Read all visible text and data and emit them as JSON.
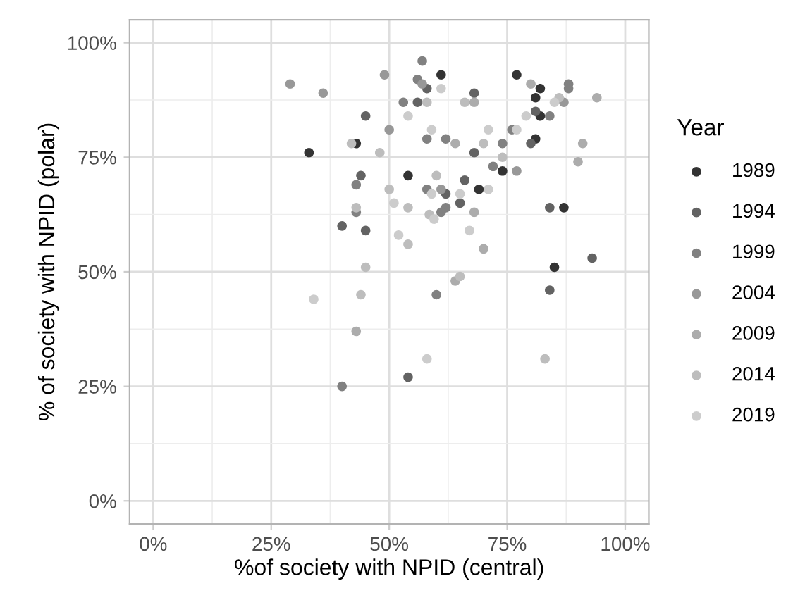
{
  "chart_data": {
    "type": "scatter",
    "xlabel": "%of society with NPID (central)",
    "ylabel": "% of society with NPID (polar)",
    "legend_title": "Year",
    "xlim": [
      -5,
      105
    ],
    "ylim": [
      -5,
      105
    ],
    "xticks": [
      {
        "value": 0,
        "label": "0%"
      },
      {
        "value": 25,
        "label": "25%"
      },
      {
        "value": 50,
        "label": "50%"
      },
      {
        "value": 75,
        "label": "75%"
      },
      {
        "value": 100,
        "label": "100%"
      }
    ],
    "yticks": [
      {
        "value": 0,
        "label": "0%"
      },
      {
        "value": 25,
        "label": "25%"
      },
      {
        "value": 50,
        "label": "50%"
      },
      {
        "value": 75,
        "label": "75%"
      },
      {
        "value": 100,
        "label": "100%"
      }
    ],
    "grid": true,
    "legend": "right",
    "marker": "circle",
    "series": [
      {
        "name": "1989",
        "color": "#333333",
        "x": [
          61,
          77,
          82,
          81,
          82,
          81,
          43,
          33,
          74,
          54,
          69,
          87,
          85
        ],
        "values": [
          93,
          93,
          90,
          88,
          84,
          79,
          78,
          76,
          72,
          71,
          68,
          64,
          51
        ]
      },
      {
        "name": "1994",
        "color": "#636363",
        "x": [
          45,
          58,
          56,
          68,
          81,
          80,
          68,
          44,
          40,
          45,
          66,
          62,
          65,
          84,
          93,
          84,
          54
        ],
        "values": [
          84,
          90,
          87,
          89,
          85,
          78,
          76,
          71,
          60,
          59,
          70,
          67,
          65,
          64,
          53,
          46,
          27
        ]
      },
      {
        "name": "1999",
        "color": "#818181",
        "x": [
          43,
          43,
          40,
          57,
          56,
          53,
          58,
          62,
          84,
          76,
          74,
          72,
          88,
          88,
          58,
          62,
          61,
          60
        ],
        "values": [
          69,
          63,
          25,
          96,
          92,
          87,
          79,
          79,
          84,
          81,
          78,
          73,
          91,
          90,
          68,
          64,
          63,
          45
        ]
      },
      {
        "name": "2004",
        "color": "#989898",
        "x": [
          29,
          36,
          49,
          50,
          57,
          77,
          87,
          61
        ],
        "values": [
          91,
          89,
          93,
          81,
          91,
          72,
          87,
          68
        ]
      },
      {
        "name": "2009",
        "color": "#acacac",
        "x": [
          68,
          64,
          80,
          94,
          91,
          90,
          68,
          70,
          43,
          64
        ],
        "values": [
          87,
          78,
          91,
          88,
          78,
          74,
          63,
          55,
          37,
          48
        ]
      },
      {
        "name": "2014",
        "color": "#bdbdbd",
        "x": [
          42,
          48,
          50,
          43,
          45,
          44,
          58,
          66,
          70,
          74,
          60,
          54,
          58.5,
          54,
          86,
          65,
          83
        ],
        "values": [
          78,
          76,
          68,
          64,
          51,
          45,
          87,
          87,
          78,
          75,
          71,
          64,
          62.5,
          56,
          88,
          49,
          31
        ]
      },
      {
        "name": "2019",
        "color": "#cccccc",
        "x": [
          51,
          34,
          61,
          54,
          59,
          71,
          79,
          77,
          85,
          59,
          71,
          65,
          59.5,
          67,
          52,
          58
        ],
        "values": [
          65,
          44,
          90,
          84,
          81,
          81,
          84,
          81,
          87,
          67,
          68,
          67,
          61.5,
          59,
          58,
          31
        ]
      }
    ]
  }
}
